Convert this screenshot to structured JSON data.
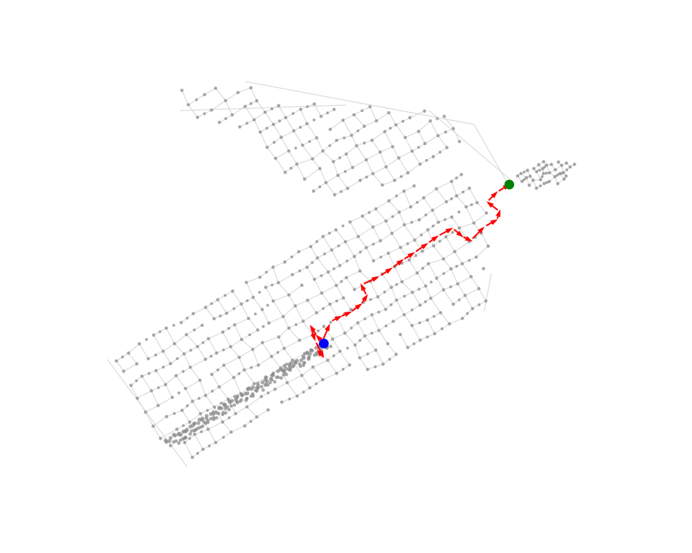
{
  "map": {
    "background": "#ffffff",
    "street_edge_color": "#d9d9d9",
    "street_node_color": "#8c8c8c",
    "route_color": "#ff0000",
    "origin_color": "#0000ff",
    "destination_color": "#008000",
    "origin_marker": "origin-node",
    "destination_marker": "destination-node",
    "route_segment_count": 24,
    "grid": false,
    "axes": false
  }
}
